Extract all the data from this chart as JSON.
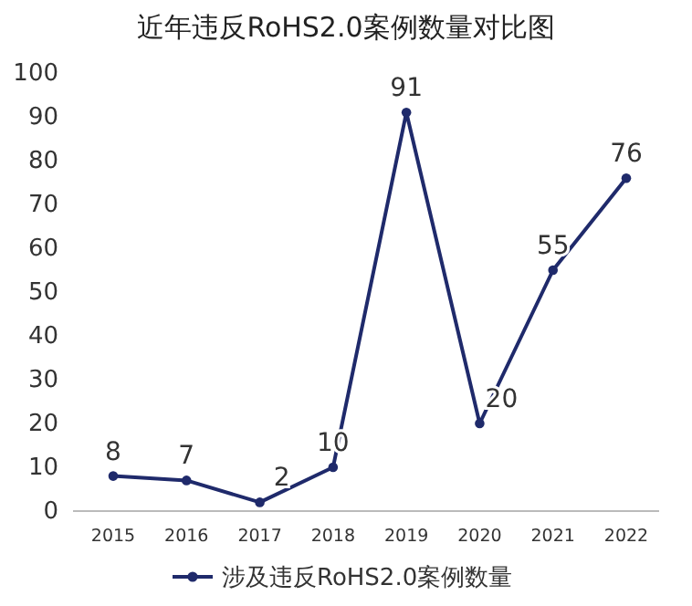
{
  "chart_data": {
    "type": "line",
    "title": "近年违反RoHS2.0案例数量对比图",
    "categories": [
      "2015",
      "2016",
      "2017",
      "2018",
      "2019",
      "2020",
      "2021",
      "2022"
    ],
    "series": [
      {
        "name": "涉及违反RoHS2.0案例数量",
        "color": "#1f2a6b",
        "values": [
          8,
          7,
          2,
          10,
          91,
          20,
          55,
          76
        ]
      }
    ],
    "ylim": [
      0,
      100
    ],
    "yticks": [
      0,
      10,
      20,
      30,
      40,
      50,
      60,
      70,
      80,
      90,
      100
    ],
    "grid": false,
    "legend": "bottom",
    "marker": "circle",
    "line_style": "solid",
    "data_labels": true
  }
}
